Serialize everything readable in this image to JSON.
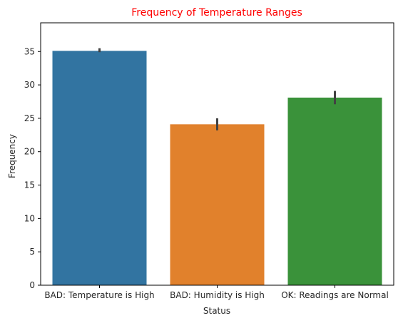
{
  "chart_data": {
    "type": "bar",
    "title": "Frequency of Temperature Ranges",
    "title_color": "#ff0000",
    "xlabel": "Status",
    "ylabel": "Frequency",
    "categories": [
      "BAD: Temperature is High",
      "BAD: Humidity is High",
      "OK:  Readings are Normal"
    ],
    "values": [
      35.1,
      24.1,
      28.1
    ],
    "error_low": [
      34.9,
      23.2,
      27.1
    ],
    "error_high": [
      35.5,
      25.0,
      29.1
    ],
    "colors": [
      "#3274a1",
      "#e1812c",
      "#3a923a"
    ],
    "error_color": "#424242",
    "ylim": [
      0,
      39.3
    ],
    "yticks": [
      0,
      5,
      10,
      15,
      20,
      25,
      30,
      35
    ],
    "grid": false
  }
}
